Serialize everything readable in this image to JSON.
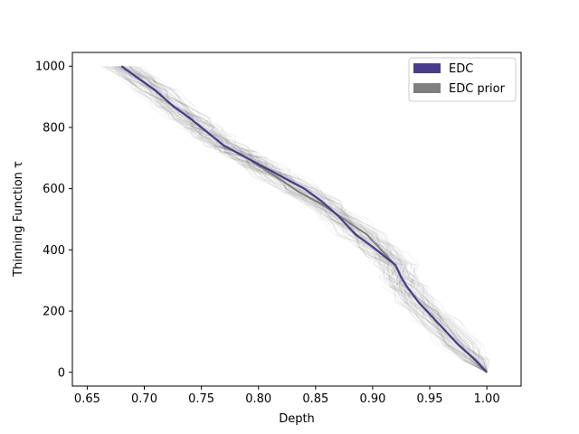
{
  "chart_data": {
    "type": "line",
    "title": "",
    "xlabel": "Depth",
    "ylabel": "Thinning Function τ",
    "xlim": [
      0.637,
      1.03
    ],
    "ylim": [
      -45,
      1045
    ],
    "x_ticks": [
      {
        "value": 0.65,
        "label": "0.65"
      },
      {
        "value": 0.7,
        "label": "0.70"
      },
      {
        "value": 0.75,
        "label": "0.75"
      },
      {
        "value": 0.8,
        "label": "0.80"
      },
      {
        "value": 0.85,
        "label": "0.85"
      },
      {
        "value": 0.9,
        "label": "0.90"
      },
      {
        "value": 0.95,
        "label": "0.95"
      },
      {
        "value": 1.0,
        "label": "1.00"
      }
    ],
    "y_ticks": [
      {
        "value": 0,
        "label": "0"
      },
      {
        "value": 200,
        "label": "200"
      },
      {
        "value": 400,
        "label": "400"
      },
      {
        "value": 600,
        "label": "600"
      },
      {
        "value": 800,
        "label": "800"
      },
      {
        "value": 1000,
        "label": "1000"
      }
    ],
    "grid": false,
    "legend_position": "top-right",
    "series": [
      {
        "name": "EDC",
        "color": "#483d8b",
        "x": [
          1.0,
          0.99,
          0.975,
          0.955,
          0.94,
          0.93,
          0.925,
          0.92,
          0.91,
          0.9,
          0.885,
          0.87,
          0.855,
          0.84,
          0.825,
          0.81,
          0.8,
          0.79,
          0.78,
          0.77,
          0.76,
          0.75,
          0.74,
          0.725,
          0.71,
          0.695,
          0.68
        ],
        "y": [
          0,
          40,
          90,
          170,
          230,
          280,
          310,
          350,
          380,
          410,
          450,
          510,
          560,
          600,
          630,
          660,
          680,
          700,
          720,
          740,
          770,
          800,
          830,
          870,
          920,
          960,
          1000
        ]
      },
      {
        "name": "EDC prior",
        "color": "#7f7f7f",
        "x": [
          1.0,
          0.99,
          0.975,
          0.955,
          0.94,
          0.93,
          0.925,
          0.92,
          0.91,
          0.895,
          0.875,
          0.855,
          0.835,
          0.815,
          0.8,
          0.79,
          0.78,
          0.77,
          0.76,
          0.75,
          0.74,
          0.725,
          0.71,
          0.695,
          0.68
        ],
        "y": [
          0,
          40,
          90,
          170,
          230,
          280,
          310,
          350,
          390,
          450,
          500,
          550,
          590,
          640,
          675,
          700,
          720,
          740,
          770,
          800,
          830,
          870,
          920,
          960,
          1000
        ]
      }
    ]
  }
}
